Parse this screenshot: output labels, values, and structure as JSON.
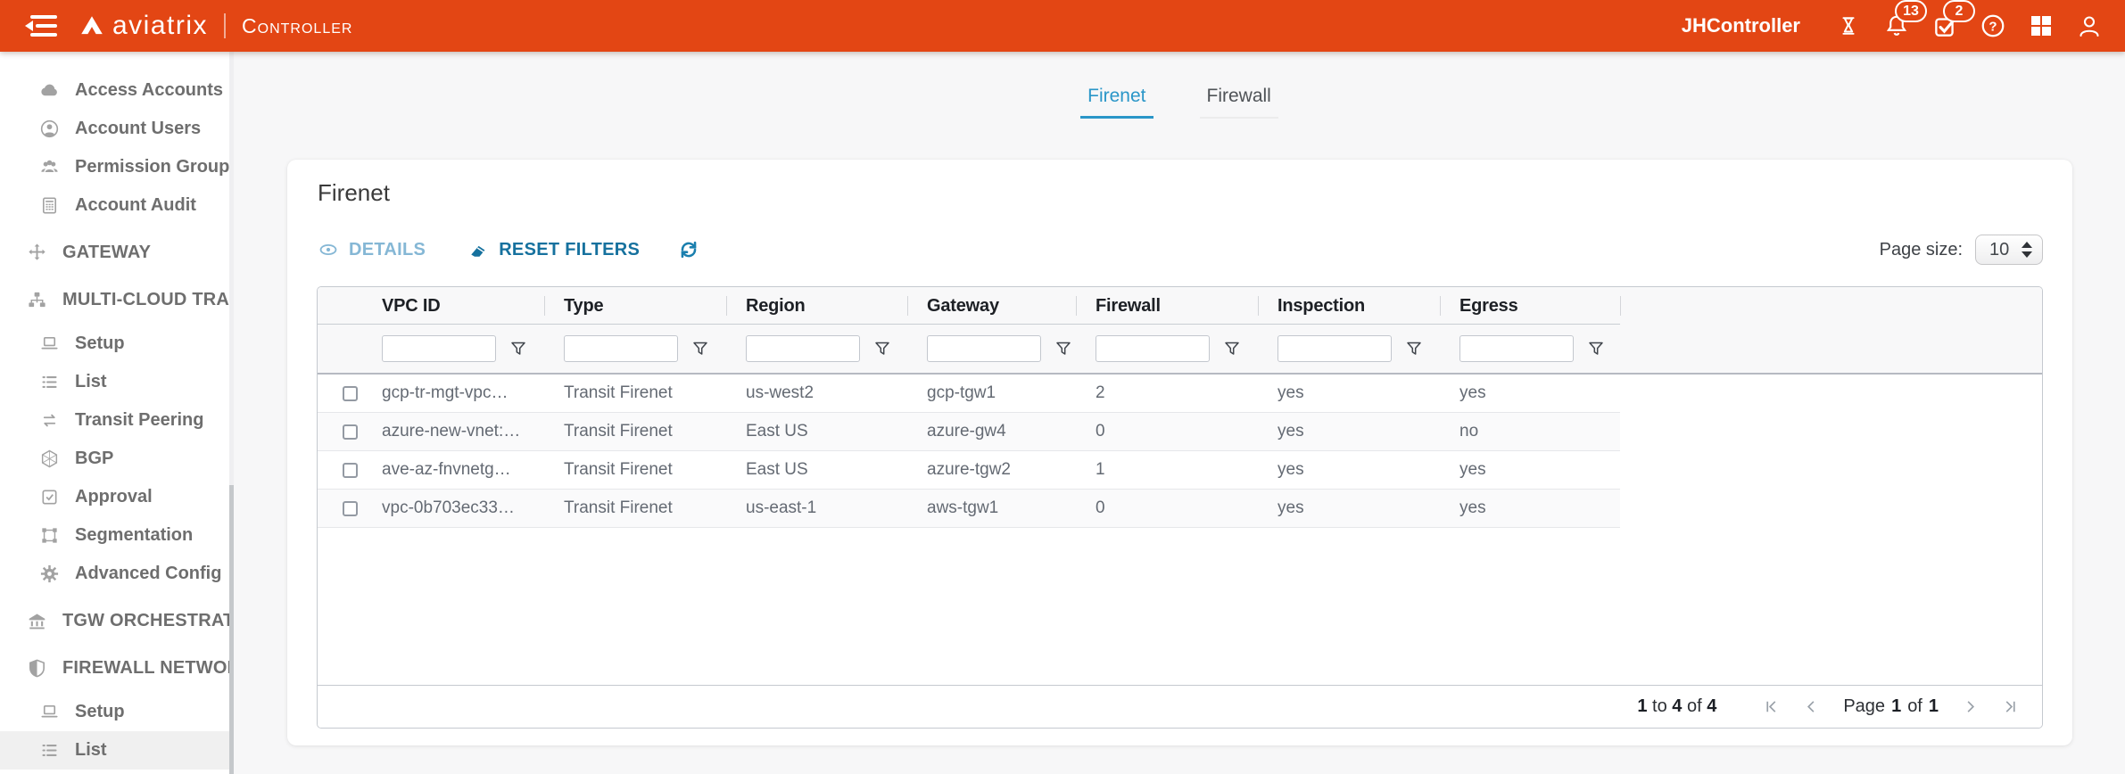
{
  "colors": {
    "accent_orange": "#e34614",
    "tab_blue": "#2a96c8",
    "action_blue": "#16719e",
    "action_blue_disabled": "#85b7d5"
  },
  "topbar": {
    "brand": "aviatrix",
    "product": "Controller",
    "controller_name": "JHController",
    "notifications_badge": "13",
    "tasks_badge": "2"
  },
  "sidebar": {
    "items": [
      {
        "label": "Access Accounts",
        "icon": "cloud",
        "level": "sub"
      },
      {
        "label": "Account Users",
        "icon": "user-circle",
        "level": "sub"
      },
      {
        "label": "Permission Groups",
        "icon": "users",
        "level": "sub"
      },
      {
        "label": "Account Audit",
        "icon": "calculator",
        "level": "sub"
      },
      {
        "label": "GATEWAY",
        "icon": "move",
        "level": "top"
      },
      {
        "label": "MULTI-CLOUD TRANSIT",
        "icon": "sitemap",
        "level": "top"
      },
      {
        "label": "Setup",
        "icon": "laptop",
        "level": "sub"
      },
      {
        "label": "List",
        "icon": "list",
        "level": "sub"
      },
      {
        "label": "Transit Peering",
        "icon": "exchange",
        "level": "sub"
      },
      {
        "label": "BGP",
        "icon": "hexagon",
        "level": "sub"
      },
      {
        "label": "Approval",
        "icon": "check-square",
        "level": "sub"
      },
      {
        "label": "Segmentation",
        "icon": "frame",
        "level": "sub"
      },
      {
        "label": "Advanced Config",
        "icon": "gear",
        "level": "sub"
      },
      {
        "label": "TGW ORCHESTRATOR",
        "icon": "bank",
        "level": "top"
      },
      {
        "label": "FIREWALL NETWORK",
        "icon": "shield",
        "level": "top"
      },
      {
        "label": "Setup",
        "icon": "laptop",
        "level": "sub"
      },
      {
        "label": "List",
        "icon": "list",
        "level": "sub",
        "selected": true
      }
    ]
  },
  "tabs": [
    {
      "label": "Firenet",
      "active": true
    },
    {
      "label": "Firewall",
      "active": false
    }
  ],
  "card": {
    "title": "Firenet"
  },
  "toolbar": {
    "details": "DETAILS",
    "reset_filters": "RESET FILTERS"
  },
  "page_size": {
    "label": "Page size:",
    "value": "10"
  },
  "table": {
    "columns": [
      "VPC ID",
      "Type",
      "Region",
      "Gateway",
      "Firewall",
      "Inspection",
      "Egress"
    ],
    "rows": [
      [
        "gcp-tr-mgt-vpc…",
        "Transit Firenet",
        "us-west2",
        "gcp-tgw1",
        "2",
        "yes",
        "yes"
      ],
      [
        "azure-new-vnet:…",
        "Transit Firenet",
        "East US",
        "azure-gw4",
        "0",
        "yes",
        "no"
      ],
      [
        "ave-az-fnvnetg…",
        "Transit Firenet",
        "East US",
        "azure-tgw2",
        "1",
        "yes",
        "yes"
      ],
      [
        "vpc-0b703ec33…",
        "Transit Firenet",
        "us-east-1",
        "aws-tgw1",
        "0",
        "yes",
        "yes"
      ]
    ],
    "footer": {
      "range_start": "1",
      "range_to_word": "to",
      "range_end": "4",
      "range_of_word": "of",
      "range_total": "4",
      "page_word": "Page",
      "page_current": "1",
      "page_of_word": "of",
      "page_total": "1"
    }
  }
}
